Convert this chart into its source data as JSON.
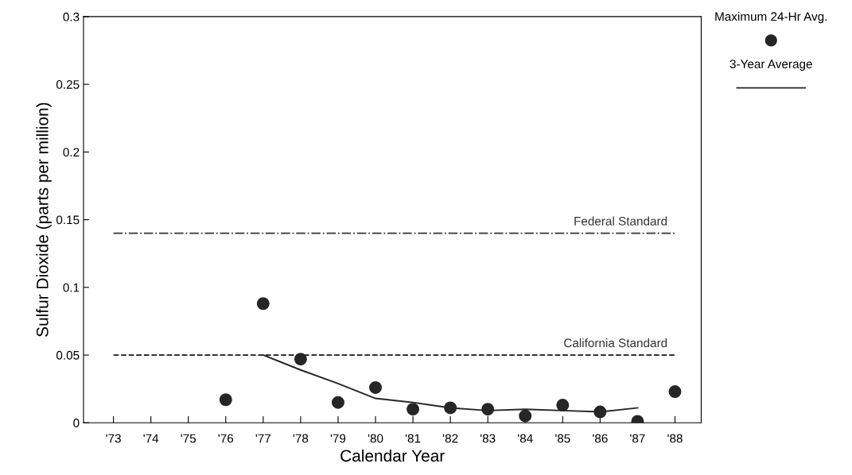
{
  "chart_data": {
    "type": "scatter",
    "xlabel": "Calendar Year",
    "ylabel": "Sulfur Dioxide (parts per million)",
    "categories": [
      "'73",
      "'74",
      "'75",
      "'76",
      "'77",
      "'78",
      "'79",
      "'80",
      "'81",
      "'82",
      "'83",
      "'84",
      "'85",
      "'86",
      "'87",
      "'88"
    ],
    "series": [
      {
        "name": "Maximum 24-Hr Avg.",
        "marker": "circle",
        "color": "#262626",
        "values": [
          null,
          null,
          null,
          0.017,
          0.088,
          0.047,
          0.015,
          0.026,
          0.01,
          0.011,
          0.01,
          0.005,
          0.013,
          0.008,
          0.001,
          0.023
        ]
      },
      {
        "name": "3-Year Average",
        "type": "line",
        "marker": "none",
        "line_style": "solid",
        "color": "#262626",
        "values": [
          null,
          null,
          null,
          null,
          0.05,
          0.039,
          0.029,
          0.018,
          0.015,
          0.011,
          0.009,
          0.01,
          0.009,
          0.008,
          0.011,
          null
        ]
      }
    ],
    "ylim": [
      0,
      0.3
    ],
    "yticks": [
      0,
      0.05,
      0.1,
      0.15,
      0.2,
      0.25,
      0.3
    ],
    "ref_lines": [
      {
        "axis": "y",
        "value": 0.14,
        "label": "Federal Standard",
        "line_style": "dashdot",
        "color": "#333333"
      },
      {
        "axis": "y",
        "value": 0.05,
        "label": "California Standard",
        "line_style": "dashed",
        "color": "#333333"
      }
    ],
    "grid": false,
    "legend": "top right"
  }
}
